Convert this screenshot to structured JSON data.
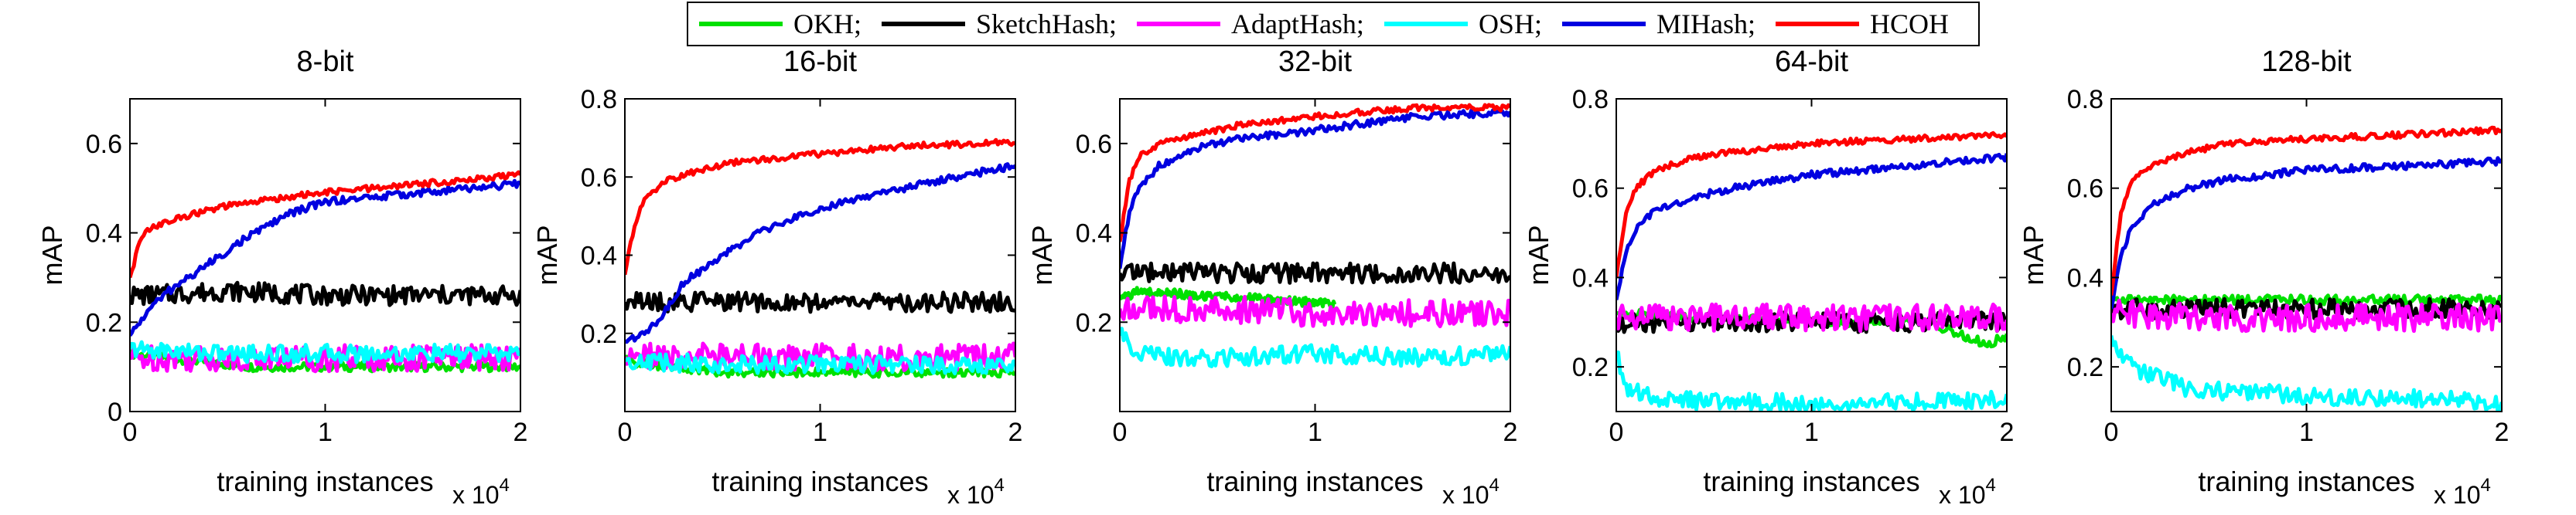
{
  "legend": {
    "items": [
      {
        "name": "OKH",
        "label": "OKH;",
        "color": "#00e000"
      },
      {
        "name": "SketchHash",
        "label": "SketchHash;",
        "color": "#000000"
      },
      {
        "name": "AdaptHash",
        "label": "AdaptHash;",
        "color": "#ff00ff"
      },
      {
        "name": "OSH",
        "label": "OSH;",
        "color": "#00ffff"
      },
      {
        "name": "MIHash",
        "label": "MIHash;",
        "color": "#0000e0"
      },
      {
        "name": "HCOH",
        "label": "HCOH",
        "color": "#ff0000"
      }
    ]
  },
  "chart_data": [
    {
      "type": "line",
      "title": "8-bit",
      "xlabel": "training instances",
      "ylabel": "mAP",
      "x_multiplier": "x 10^4",
      "xlim": [
        0,
        2
      ],
      "ylim": [
        0,
        0.7
      ],
      "xticks": [
        0,
        1,
        2
      ],
      "yticks": [
        0,
        0.2,
        0.4,
        0.6
      ],
      "ytick_labels": [
        "0",
        "0.2",
        "0.4",
        "0.6"
      ],
      "grid": false,
      "series": [
        {
          "name": "OKH",
          "color": "#00e000",
          "x": [
            0,
            0.6,
            1.0,
            1.5,
            2.0
          ],
          "y": [
            0.13,
            0.1,
            0.1,
            0.1,
            0.1
          ]
        },
        {
          "name": "SketchHash",
          "color": "#000000",
          "x": [
            0,
            0.1,
            0.5,
            1.0,
            1.5,
            2.0
          ],
          "y": [
            0.26,
            0.26,
            0.27,
            0.26,
            0.26,
            0.26
          ]
        },
        {
          "name": "AdaptHash",
          "color": "#ff00ff",
          "x": [
            0,
            0.5,
            1.0,
            1.5,
            2.0
          ],
          "y": [
            0.12,
            0.12,
            0.12,
            0.12,
            0.12
          ]
        },
        {
          "name": "OSH",
          "color": "#00ffff",
          "x": [
            0,
            0.5,
            1.0,
            1.5,
            2.0
          ],
          "y": [
            0.14,
            0.13,
            0.13,
            0.13,
            0.13
          ]
        },
        {
          "name": "MIHash",
          "color": "#0000e0",
          "x": [
            0,
            0.1,
            0.2,
            0.4,
            0.6,
            0.8,
            1.0,
            1.5,
            2.0
          ],
          "y": [
            0.17,
            0.23,
            0.27,
            0.33,
            0.39,
            0.44,
            0.47,
            0.49,
            0.51
          ]
        },
        {
          "name": "HCOH",
          "color": "#ff0000",
          "x": [
            0,
            0.05,
            0.1,
            0.3,
            0.5,
            0.8,
            1.0,
            1.5,
            2.0
          ],
          "y": [
            0.3,
            0.38,
            0.41,
            0.44,
            0.46,
            0.48,
            0.49,
            0.51,
            0.53
          ]
        }
      ]
    },
    {
      "type": "line",
      "title": "16-bit",
      "xlabel": "training instances",
      "ylabel": "mAP",
      "x_multiplier": "x 10^4",
      "xlim": [
        0,
        2
      ],
      "ylim": [
        0,
        0.8
      ],
      "xticks": [
        0,
        1,
        2
      ],
      "yticks": [
        0.2,
        0.4,
        0.6,
        0.8
      ],
      "ytick_labels": [
        "0.2",
        "0.4",
        "0.6",
        "0.8"
      ],
      "grid": false,
      "series": [
        {
          "name": "OKH",
          "color": "#00e000",
          "x": [
            0,
            0.3,
            0.5,
            1.0,
            1.5,
            2.0
          ],
          "y": [
            0.13,
            0.11,
            0.1,
            0.1,
            0.1,
            0.1
          ]
        },
        {
          "name": "SketchHash",
          "color": "#000000",
          "x": [
            0,
            0.5,
            1.0,
            1.5,
            2.0
          ],
          "y": [
            0.28,
            0.28,
            0.28,
            0.28,
            0.28
          ]
        },
        {
          "name": "AdaptHash",
          "color": "#ff00ff",
          "x": [
            0,
            0.5,
            1.0,
            1.5,
            2.0
          ],
          "y": [
            0.14,
            0.14,
            0.14,
            0.14,
            0.14
          ]
        },
        {
          "name": "OSH",
          "color": "#00ffff",
          "x": [
            0,
            0.5,
            1.0,
            1.5,
            2.0
          ],
          "y": [
            0.13,
            0.12,
            0.12,
            0.12,
            0.12
          ]
        },
        {
          "name": "MIHash",
          "color": "#0000e0",
          "x": [
            0,
            0.1,
            0.2,
            0.3,
            0.5,
            0.7,
            1.0,
            1.5,
            2.0
          ],
          "y": [
            0.18,
            0.2,
            0.25,
            0.33,
            0.4,
            0.46,
            0.52,
            0.58,
            0.63
          ]
        },
        {
          "name": "HCOH",
          "color": "#ff0000",
          "x": [
            0,
            0.05,
            0.1,
            0.2,
            0.4,
            0.6,
            1.0,
            1.5,
            2.0
          ],
          "y": [
            0.35,
            0.48,
            0.54,
            0.59,
            0.62,
            0.64,
            0.66,
            0.68,
            0.69
          ]
        }
      ]
    },
    {
      "type": "line",
      "title": "32-bit",
      "xlabel": "training instances",
      "ylabel": "mAP",
      "x_multiplier": "x 10^4",
      "xlim": [
        0,
        2
      ],
      "ylim": [
        0,
        0.7
      ],
      "xticks": [
        0,
        1,
        2
      ],
      "yticks": [
        0.2,
        0.4,
        0.6
      ],
      "ytick_labels": [
        "0.2",
        "0.4",
        "0.6"
      ],
      "grid": false,
      "series": [
        {
          "name": "OKH",
          "color": "#00e000",
          "x": [
            0,
            0.1,
            0.4,
            0.8,
            1.1
          ],
          "y": [
            0.25,
            0.27,
            0.26,
            0.25,
            0.24
          ]
        },
        {
          "name": "SketchHash",
          "color": "#000000",
          "x": [
            0,
            0.5,
            1.0,
            1.5,
            2.0
          ],
          "y": [
            0.31,
            0.31,
            0.31,
            0.31,
            0.31
          ]
        },
        {
          "name": "AdaptHash",
          "color": "#ff00ff",
          "x": [
            0,
            0.5,
            1.0,
            1.5,
            2.0
          ],
          "y": [
            0.23,
            0.23,
            0.22,
            0.22,
            0.22
          ]
        },
        {
          "name": "OSH",
          "color": "#00ffff",
          "x": [
            0,
            0.1,
            0.3,
            0.5,
            1.0,
            1.5,
            2.0
          ],
          "y": [
            0.17,
            0.13,
            0.12,
            0.12,
            0.13,
            0.12,
            0.13
          ]
        },
        {
          "name": "MIHash",
          "color": "#0000e0",
          "x": [
            0,
            0.05,
            0.1,
            0.2,
            0.4,
            0.6,
            1.0,
            1.5,
            2.0
          ],
          "y": [
            0.32,
            0.45,
            0.5,
            0.55,
            0.59,
            0.61,
            0.63,
            0.66,
            0.67
          ]
        },
        {
          "name": "HCOH",
          "color": "#ff0000",
          "x": [
            0,
            0.05,
            0.1,
            0.2,
            0.4,
            0.6,
            1.0,
            1.5,
            2.0
          ],
          "y": [
            0.38,
            0.52,
            0.57,
            0.6,
            0.62,
            0.64,
            0.66,
            0.68,
            0.68
          ]
        }
      ]
    },
    {
      "type": "line",
      "title": "64-bit",
      "xlabel": "training instances",
      "ylabel": "mAP",
      "x_multiplier": "x 10^4",
      "xlim": [
        0,
        2
      ],
      "ylim": [
        0.1,
        0.8
      ],
      "xticks": [
        0,
        1,
        2
      ],
      "yticks": [
        0.2,
        0.4,
        0.6,
        0.8
      ],
      "ytick_labels": [
        "0.2",
        "0.4",
        "0.6",
        "0.8"
      ],
      "grid": false,
      "series": [
        {
          "name": "OKH",
          "color": "#00e000",
          "x": [
            0,
            0.5,
            1.0,
            1.6,
            1.9,
            2.0
          ],
          "y": [
            0.32,
            0.31,
            0.3,
            0.3,
            0.25,
            0.27
          ]
        },
        {
          "name": "SketchHash",
          "color": "#000000",
          "x": [
            0,
            2.0
          ],
          "y": [
            0.3,
            0.3
          ]
        },
        {
          "name": "AdaptHash",
          "color": "#ff00ff",
          "x": [
            0,
            0.5,
            1.0,
            1.5,
            2.0
          ],
          "y": [
            0.31,
            0.31,
            0.31,
            0.31,
            0.31
          ]
        },
        {
          "name": "OSH",
          "color": "#00ffff",
          "x": [
            0,
            0.05,
            0.2,
            0.5,
            1.0,
            1.5,
            2.0
          ],
          "y": [
            0.23,
            0.15,
            0.13,
            0.12,
            0.12,
            0.12,
            0.13
          ]
        },
        {
          "name": "MIHash",
          "color": "#0000e0",
          "x": [
            0,
            0.05,
            0.1,
            0.2,
            0.4,
            0.6,
            1.0,
            1.5,
            2.0
          ],
          "y": [
            0.35,
            0.46,
            0.51,
            0.55,
            0.58,
            0.6,
            0.63,
            0.65,
            0.67
          ]
        },
        {
          "name": "HCOH",
          "color": "#ff0000",
          "x": [
            0,
            0.05,
            0.1,
            0.2,
            0.4,
            0.6,
            1.0,
            1.5,
            2.0
          ],
          "y": [
            0.4,
            0.55,
            0.6,
            0.64,
            0.67,
            0.68,
            0.7,
            0.71,
            0.72
          ]
        }
      ]
    },
    {
      "type": "line",
      "title": "128-bit",
      "xlabel": "training instances",
      "ylabel": "mAP",
      "x_multiplier": "x 10^4",
      "xlim": [
        0,
        2
      ],
      "ylim": [
        0.1,
        0.8
      ],
      "xticks": [
        0,
        1,
        2
      ],
      "yticks": [
        0.2,
        0.4,
        0.6,
        0.8
      ],
      "ytick_labels": [
        "0.2",
        "0.4",
        "0.6",
        "0.8"
      ],
      "grid": false,
      "series": [
        {
          "name": "OKH",
          "color": "#00e000",
          "x": [
            0,
            0.5,
            1.0,
            1.5,
            2.0
          ],
          "y": [
            0.35,
            0.35,
            0.35,
            0.35,
            0.35
          ]
        },
        {
          "name": "SketchHash",
          "color": "#000000",
          "x": [
            0,
            2.0
          ],
          "y": [
            0.33,
            0.33
          ]
        },
        {
          "name": "AdaptHash",
          "color": "#ff00ff",
          "x": [
            0,
            0.5,
            1.0,
            1.5,
            2.0
          ],
          "y": [
            0.32,
            0.31,
            0.31,
            0.31,
            0.31
          ]
        },
        {
          "name": "OSH",
          "color": "#00ffff",
          "x": [
            0,
            0.05,
            0.2,
            0.4,
            0.8,
            1.2,
            1.6,
            2.0
          ],
          "y": [
            0.27,
            0.22,
            0.18,
            0.15,
            0.14,
            0.13,
            0.13,
            0.12
          ]
        },
        {
          "name": "MIHash",
          "color": "#0000e0",
          "x": [
            0,
            0.05,
            0.1,
            0.2,
            0.4,
            0.6,
            1.0,
            1.5,
            2.0
          ],
          "y": [
            0.33,
            0.45,
            0.51,
            0.56,
            0.6,
            0.62,
            0.64,
            0.65,
            0.66
          ]
        },
        {
          "name": "HCOH",
          "color": "#ff0000",
          "x": [
            0,
            0.05,
            0.1,
            0.2,
            0.4,
            0.6,
            1.0,
            1.5,
            2.0
          ],
          "y": [
            0.36,
            0.55,
            0.61,
            0.65,
            0.68,
            0.7,
            0.71,
            0.72,
            0.73
          ]
        }
      ]
    }
  ]
}
